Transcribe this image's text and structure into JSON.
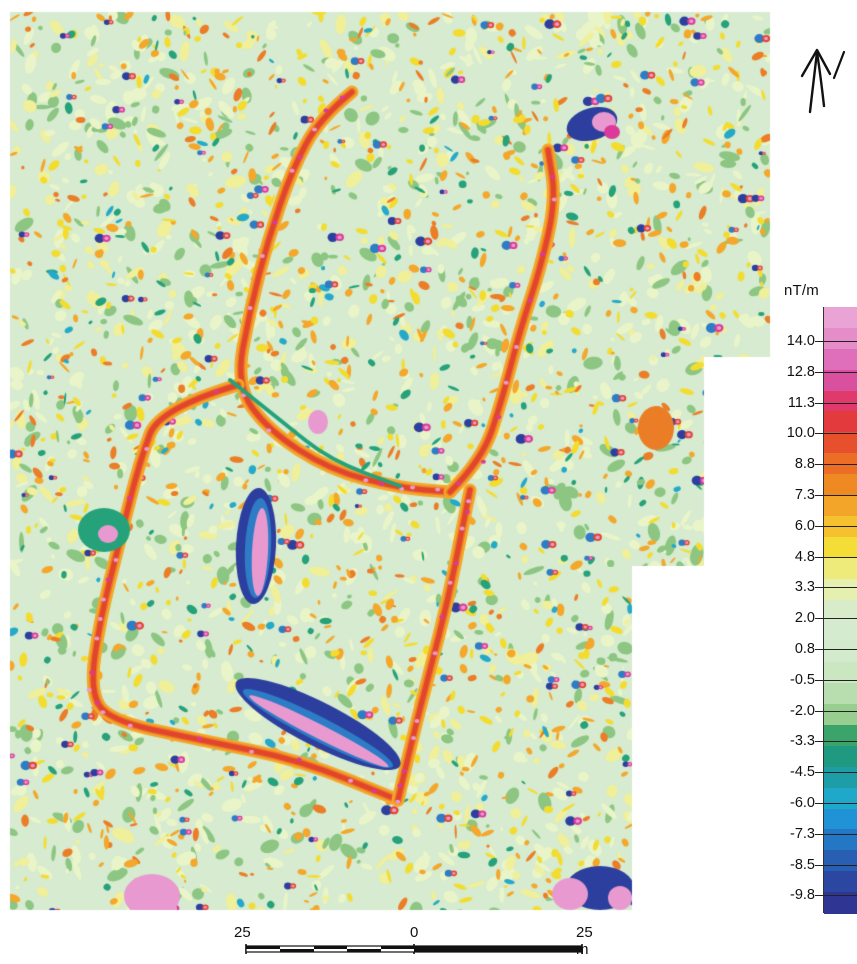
{
  "map": {
    "seed": 20231,
    "colors": {
      "background": "#d6ebcf",
      "light_green": "#e9f4c9",
      "pale_yellow": "#f0ef9a",
      "yellow": "#f4dc2e",
      "orange": "#f4a72a",
      "deep_orange": "#ec7d27",
      "red": "#e2452d",
      "pink": "#e89ad0",
      "magenta": "#db3a9a",
      "dark_blue": "#2c3f9f",
      "blue": "#2e7cc6",
      "cyan": "#25a9c9",
      "teal": "#25a27a",
      "green": "#8cc682"
    }
  },
  "north_arrow": {
    "icon": "north-arrow-icon",
    "stroke": "#111111"
  },
  "legend": {
    "unit": "nT/m",
    "labels": [
      "14.0",
      "12.8",
      "11.3",
      "10.0",
      "8.8",
      "7.3",
      "6.0",
      "4.8",
      "3.3",
      "2.0",
      "0.8",
      "-0.5",
      "-2.0",
      "-3.3",
      "-4.5",
      "-6.0",
      "-7.3",
      "-8.5",
      "-9.8"
    ],
    "swatches": [
      "#e9a3d5",
      "#e58dc9",
      "#df6fbb",
      "#d9509f",
      "#e03a6c",
      "#e23a3d",
      "#e6502c",
      "#ec6e26",
      "#ef8a23",
      "#f3a52a",
      "#f5c12e",
      "#f3dd36",
      "#efeb7a",
      "#e5f0b0",
      "#d8ecc9",
      "#d5ebcf",
      "#d3eacc",
      "#cbe7c2",
      "#b8deb0",
      "#98cf91",
      "#3aa46b",
      "#1f9a80",
      "#1d9da5",
      "#20a8cb",
      "#1f93d5",
      "#2377c5",
      "#285fb3",
      "#2c47a2",
      "#2f3592"
    ]
  },
  "scale_bar": {
    "labels": [
      "25",
      "0",
      "25 m"
    ]
  }
}
